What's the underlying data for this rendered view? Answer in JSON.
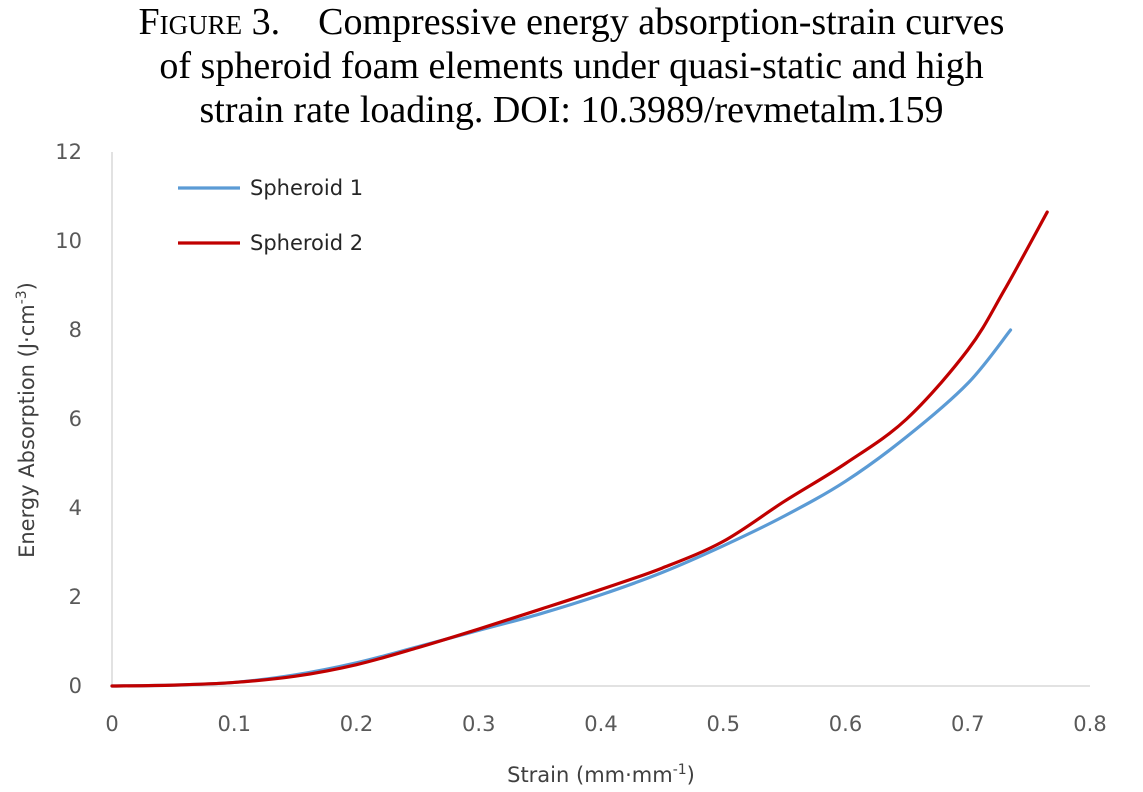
{
  "caption": {
    "label": "Figure 3.",
    "line1": "Compressive energy absorption-strain curves",
    "line2": "of spheroid foam elements under quasi-static and high",
    "line3": "strain rate loading. DOI: 10.3989/revmetalm.159"
  },
  "chart_data": {
    "type": "line",
    "xlabel": "Strain (mm·mm",
    "xlabel_sup": "-1",
    "xlabel_end": ")",
    "ylabel": "Energy Absorption (J·cm",
    "ylabel_sup": "-3",
    "ylabel_end": ")",
    "xlim": [
      0,
      0.8
    ],
    "ylim": [
      0,
      12
    ],
    "xticks": [
      "0",
      "0.1",
      "0.2",
      "0.3",
      "0.4",
      "0.5",
      "0.6",
      "0.7",
      "0.8"
    ],
    "yticks": [
      "0",
      "2",
      "4",
      "6",
      "8",
      "10",
      "12"
    ],
    "grid": false,
    "legend_position": "top-left",
    "series": [
      {
        "name": "Spheroid 1",
        "color": "#5B9BD5",
        "x": [
          0,
          0.05,
          0.1,
          0.15,
          0.2,
          0.25,
          0.3,
          0.35,
          0.4,
          0.45,
          0.5,
          0.55,
          0.6,
          0.65,
          0.7,
          0.735
        ],
        "y": [
          0,
          0.02,
          0.08,
          0.25,
          0.52,
          0.88,
          1.25,
          1.62,
          2.05,
          2.55,
          3.15,
          3.82,
          4.6,
          5.6,
          6.8,
          8.0
        ]
      },
      {
        "name": "Spheroid 2",
        "color": "#C00000",
        "x": [
          0,
          0.05,
          0.1,
          0.15,
          0.2,
          0.25,
          0.3,
          0.35,
          0.4,
          0.45,
          0.5,
          0.55,
          0.6,
          0.65,
          0.7,
          0.73,
          0.765
        ],
        "y": [
          0,
          0.02,
          0.08,
          0.22,
          0.48,
          0.86,
          1.28,
          1.72,
          2.17,
          2.65,
          3.25,
          4.15,
          5.0,
          6.0,
          7.55,
          8.9,
          10.65
        ]
      }
    ]
  }
}
